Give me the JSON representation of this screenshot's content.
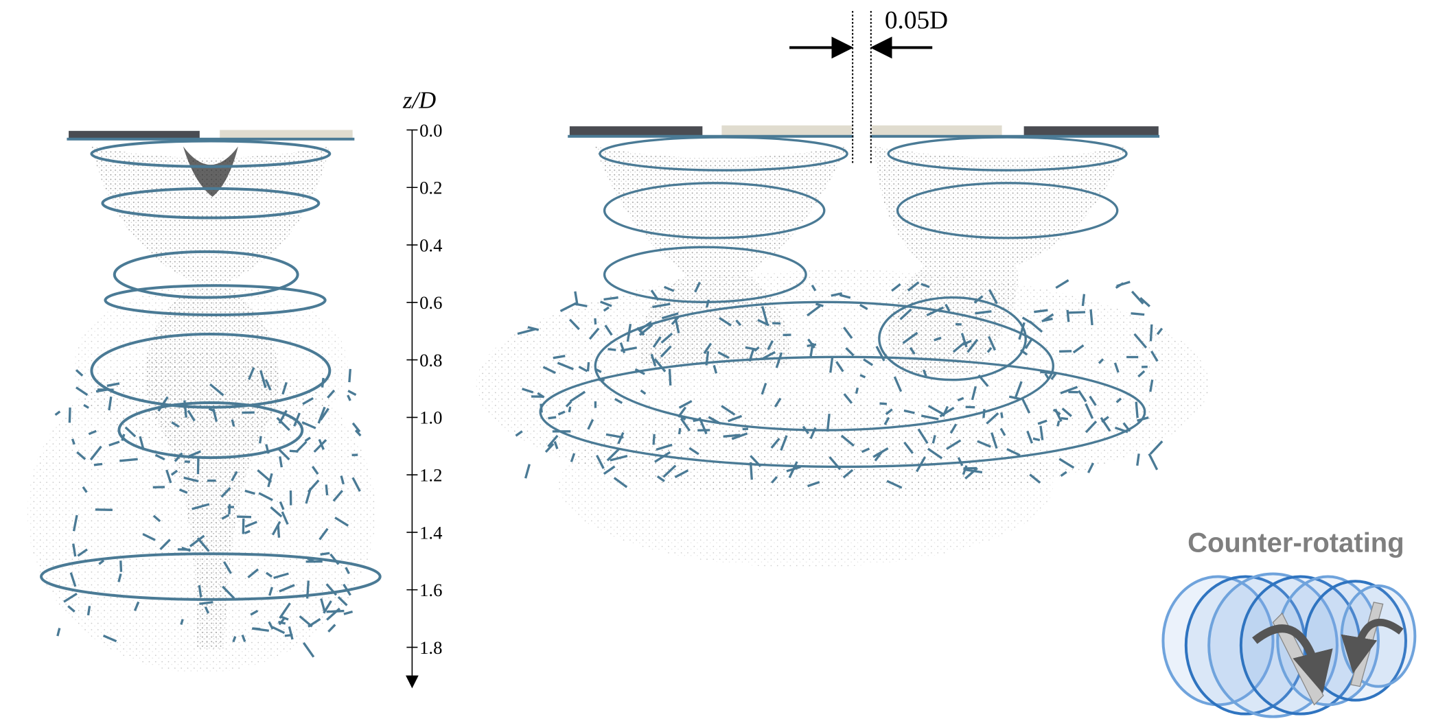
{
  "annotations": {
    "spacing": "0.05D",
    "legend": "Counter-rotating"
  },
  "axis": {
    "label": "z/D",
    "ticks": [
      {
        "value": 0,
        "label": "0.0"
      },
      {
        "value": 0.2,
        "label": "0.2"
      },
      {
        "value": 0.4,
        "label": "0.4"
      },
      {
        "value": 0.6,
        "label": "0.6"
      },
      {
        "value": 0.8,
        "label": "0.8"
      },
      {
        "value": 1.0,
        "label": "1.0"
      },
      {
        "value": 1.2,
        "label": "1.2"
      },
      {
        "value": 1.4,
        "label": "1.4"
      },
      {
        "value": 1.6,
        "label": "1.6"
      },
      {
        "value": 1.8,
        "label": "1.8"
      }
    ]
  }
}
